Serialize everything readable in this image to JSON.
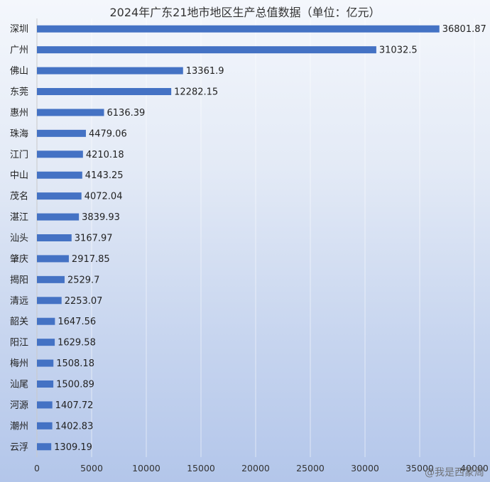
{
  "chart_data": {
    "type": "bar",
    "orientation": "horizontal",
    "title": "2024年广东21地市地区生产总值数据（单位：亿元）",
    "categories": [
      "深圳",
      "广州",
      "佛山",
      "东莞",
      "惠州",
      "珠海",
      "江门",
      "中山",
      "茂名",
      "湛江",
      "汕头",
      "肇庆",
      "揭阳",
      "清远",
      "韶关",
      "阳江",
      "梅州",
      "汕尾",
      "河源",
      "潮州",
      "云浮"
    ],
    "values": [
      36801.87,
      31032.5,
      13361.9,
      12282.15,
      6136.39,
      4479.06,
      4210.18,
      4143.25,
      4072.04,
      3839.93,
      3167.97,
      2917.85,
      2529.7,
      2253.07,
      1647.56,
      1629.58,
      1508.18,
      1500.89,
      1407.72,
      1402.83,
      1309.19
    ],
    "value_labels": [
      "36801.87",
      "31032.5",
      "13361.9",
      "12282.15",
      "6136.39",
      "4479.06",
      "4210.18",
      "4143.25",
      "4072.04",
      "3839.93",
      "3167.97",
      "2917.85",
      "2529.7",
      "2253.07",
      "1647.56",
      "1629.58",
      "1508.18",
      "1500.89",
      "1407.72",
      "1402.83",
      "1309.19"
    ],
    "xticks": [
      "0",
      "5000",
      "10000",
      "15000",
      "20000",
      "25000",
      "30000",
      "35000",
      "40000"
    ],
    "xlim": [
      0,
      40000
    ],
    "bar_color": "#4472c4",
    "grid": true
  },
  "watermark": "@我是西蒙周"
}
